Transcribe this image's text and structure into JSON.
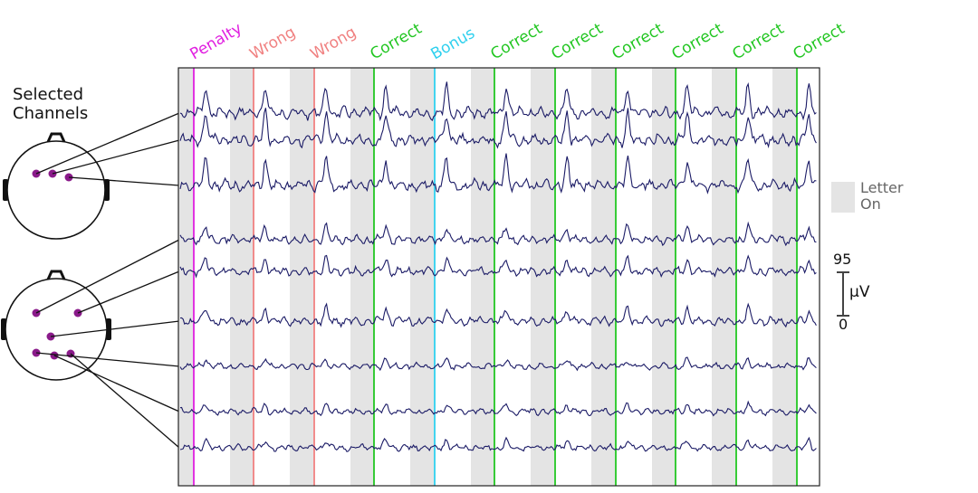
{
  "channel_panel": {
    "title": "Selected\nChannels"
  },
  "trials": {
    "labels": [
      "Penalty",
      "Wrong",
      "Wrong",
      "Correct",
      "Bonus",
      "Correct",
      "Correct",
      "Correct",
      "Correct",
      "Correct",
      "Correct"
    ],
    "colors": [
      "#e020e0",
      "#f08080",
      "#f08080",
      "#22c622",
      "#2ed0ee",
      "#22c622",
      "#22c622",
      "#22c622",
      "#22c622",
      "#22c622",
      "#22c622"
    ]
  },
  "legend": {
    "letter_on": "Letter\nOn",
    "swatch_color": "#e4e4e4"
  },
  "scale": {
    "top_value": "95",
    "bottom_value": "0",
    "unit": "μV"
  },
  "colors": {
    "trace": "#1b1b66",
    "electrode": "#8a1a8a",
    "panel_border": "#222222"
  },
  "channel_count": 9
}
